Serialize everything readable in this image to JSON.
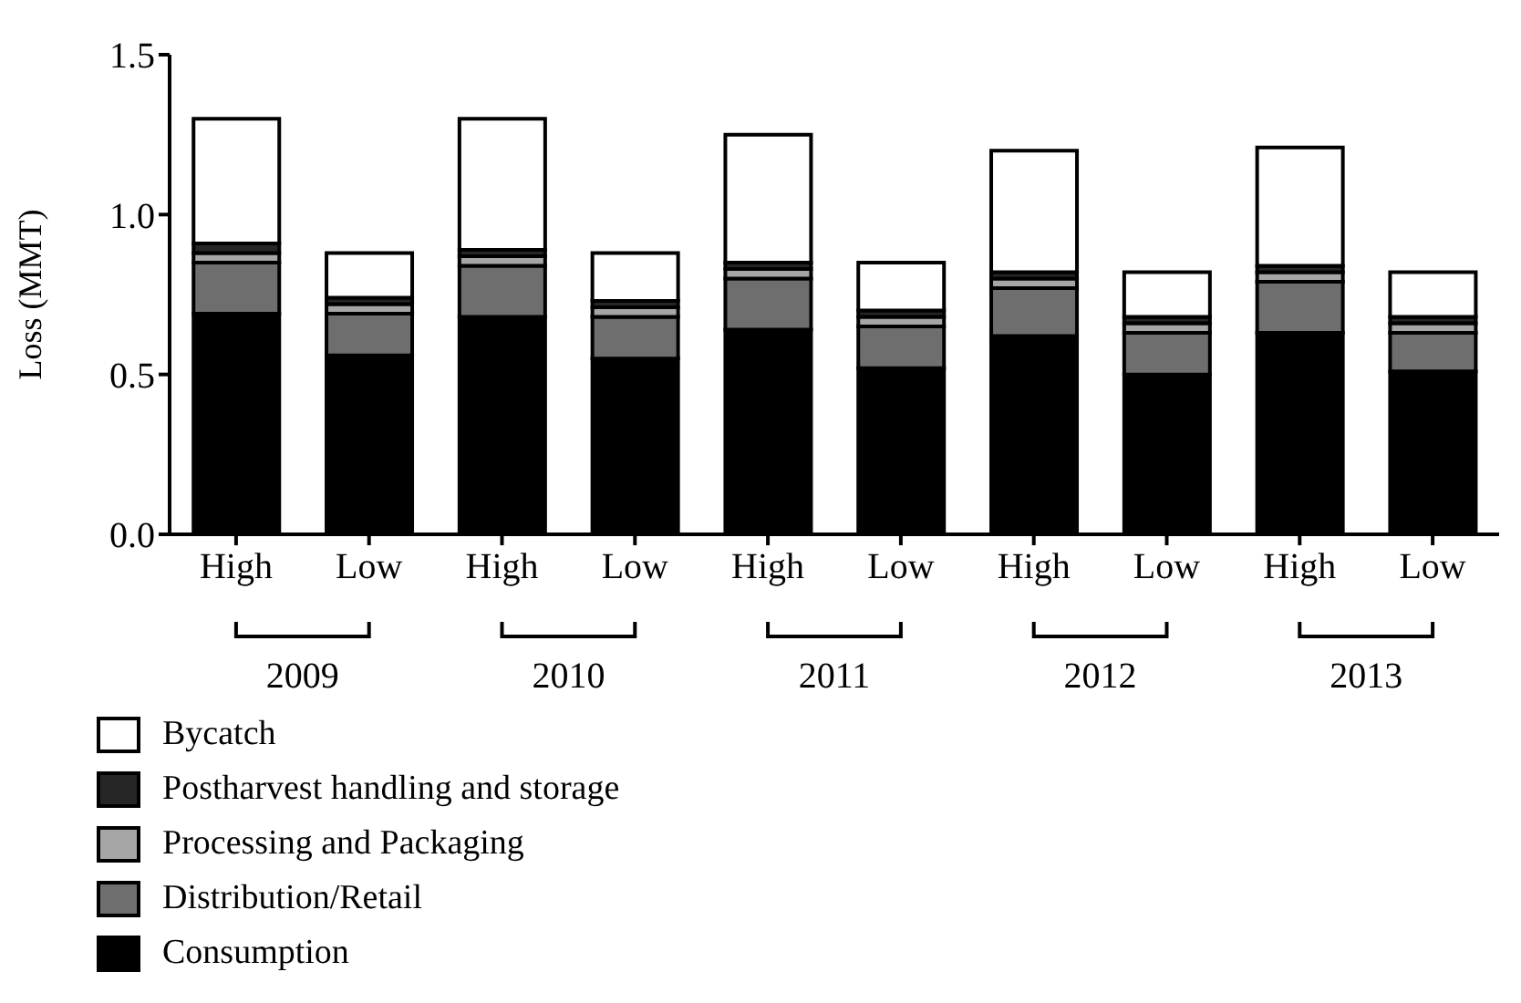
{
  "chart_data": {
    "type": "bar",
    "stacked": true,
    "ylabel": "Loss (MMT)",
    "categories": [
      "High",
      "Low",
      "High",
      "Low",
      "High",
      "Low",
      "High",
      "Low",
      "High",
      "Low"
    ],
    "annotations": [
      "2009",
      "2010",
      "2011",
      "2012",
      "2013"
    ],
    "series": [
      {
        "name": "Consumption",
        "color": "#000000",
        "values": [
          0.69,
          0.56,
          0.68,
          0.55,
          0.64,
          0.52,
          0.62,
          0.5,
          0.63,
          0.51
        ]
      },
      {
        "name": "Distribution/Retail",
        "color": "#6e6e6e",
        "values": [
          0.16,
          0.13,
          0.16,
          0.13,
          0.16,
          0.13,
          0.15,
          0.13,
          0.16,
          0.12
        ]
      },
      {
        "name": "Processing and Packaging",
        "color": "#a6a6a6",
        "values": [
          0.03,
          0.03,
          0.03,
          0.03,
          0.03,
          0.03,
          0.03,
          0.03,
          0.03,
          0.03
        ]
      },
      {
        "name": "Postharvest handling and storage",
        "color": "#262626",
        "values": [
          0.03,
          0.02,
          0.02,
          0.02,
          0.02,
          0.02,
          0.02,
          0.02,
          0.02,
          0.02
        ]
      },
      {
        "name": "Bycatch",
        "color": "#ffffff",
        "values": [
          0.39,
          0.14,
          0.41,
          0.15,
          0.4,
          0.15,
          0.38,
          0.14,
          0.37,
          0.14
        ]
      }
    ],
    "ylim": [
      0,
      1.5
    ],
    "yticks": [
      {
        "value": 0,
        "label": "0.0"
      },
      {
        "value": 0.5,
        "label": "0.5"
      },
      {
        "value": 1,
        "label": "1.0"
      },
      {
        "value": 1.5,
        "label": "1.5"
      }
    ],
    "grid": false,
    "legend": "bottom left"
  }
}
